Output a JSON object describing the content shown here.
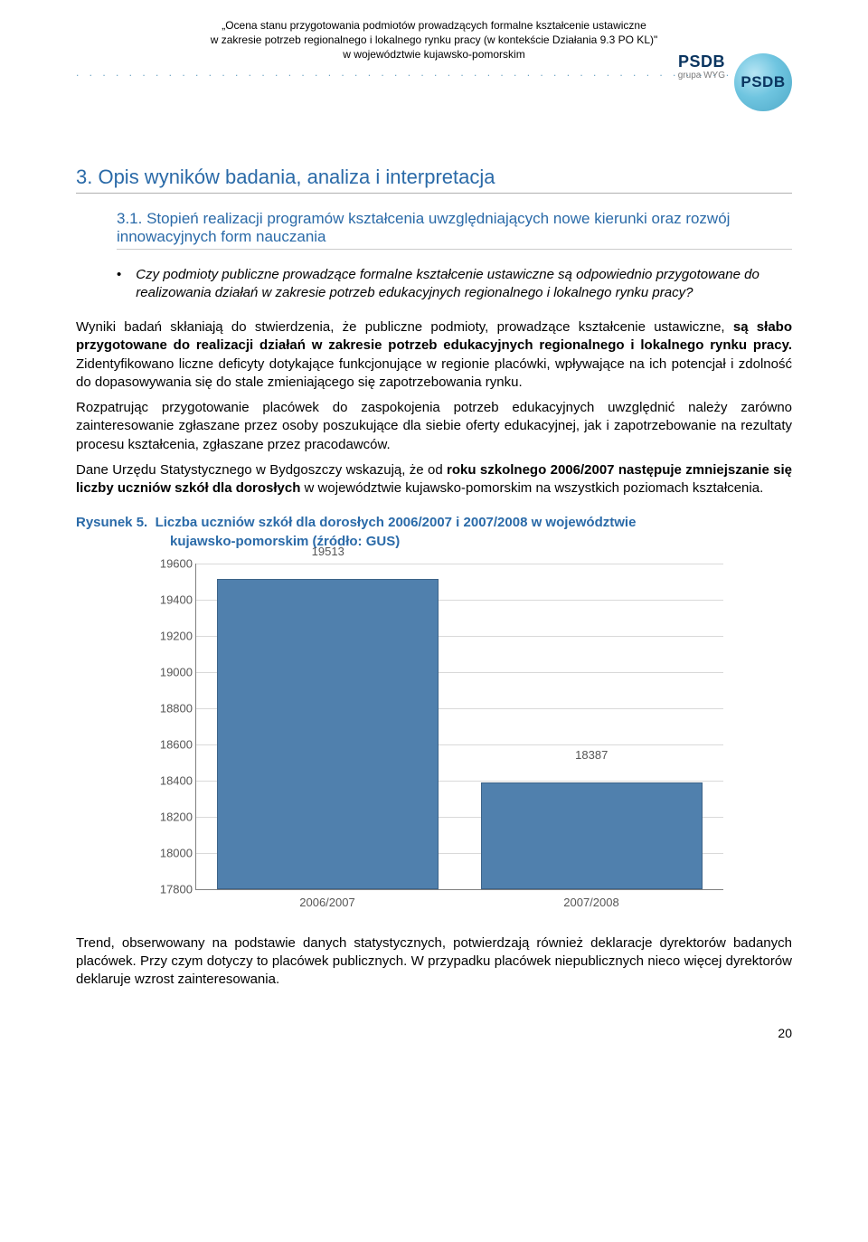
{
  "header": {
    "line1": "„Ocena stanu przygotowania podmiotów prowadzących formalne kształcenie ustawiczne",
    "line2": "w zakresie potrzeb regionalnego i lokalnego rynku pracy (w kontekście Działania 9.3 PO KL)\"",
    "line3": "w województwie kujawsko-pomorskim"
  },
  "logo": {
    "main": "PSDB",
    "sub": "grupa WYG",
    "circle": "PSDB"
  },
  "section": {
    "title": "3. Opis wyników badania, analiza i interpretacja",
    "subtitle": "3.1.  Stopień realizacji programów kształcenia uwzględniających nowe kierunki oraz rozwój innowacyjnych form nauczania"
  },
  "bullet": "Czy podmioty publiczne prowadzące formalne kształcenie ustawiczne są odpowiednio przygotowane do realizowania działań w zakresie potrzeb edukacyjnych regionalnego i lokalnego rynku pracy?",
  "para1_pre": "Wyniki badań skłaniają do stwierdzenia, że publiczne podmioty, prowadzące kształcenie ustawiczne, ",
  "para1_bold": "są słabo przygotowane do realizacji działań w zakresie potrzeb edukacyjnych regionalnego i lokalnego rynku pracy.",
  "para1_post": " Zidentyfikowano liczne deficyty dotykające funkcjonujące w regionie placówki, wpływające na ich potencjał i zdolność do dopasowywania się do stale zmieniającego się zapotrzebowania rynku.",
  "para2": "Rozpatrując przygotowanie placówek do zaspokojenia potrzeb edukacyjnych uwzględnić należy zarówno zainteresowanie zgłaszane przez osoby poszukujące dla siebie oferty edukacyjnej, jak i zapotrzebowanie na rezultaty procesu kształcenia, zgłaszane przez pracodawców.",
  "para3_pre": "Dane Urzędu Statystycznego w Bydgoszczy wskazują, że od ",
  "para3_bold": "roku szkolnego 2006/2007 następuje zmniejszanie się liczby uczniów szkół dla dorosłych",
  "para3_post": " w województwie kujawsko-pomorskim na wszystkich poziomach kształcenia.",
  "figure": {
    "label_prefix": "Rysunek 5.",
    "label_title": "Liczba uczniów szkół dla dorosłych 2006/2007 i 2007/2008 w województwie",
    "label_title2": "kujawsko-pomorskim (źródło: GUS)"
  },
  "chart": {
    "type": "bar",
    "categories": [
      "2006/2007",
      "2007/2008"
    ],
    "values": [
      19513,
      18387
    ],
    "bar_color": "#5080ad",
    "bar_border": "#3d6388",
    "background": "#ffffff",
    "grid_color": "#d9d9d9",
    "axis_color": "#808080",
    "y_min": 17800,
    "y_max": 19600,
    "y_step": 200,
    "label_fontsize": 13,
    "label_color": "#555555",
    "bar_width_pct": 42
  },
  "footer_para": "Trend, obserwowany na podstawie danych statystycznych, potwierdzają również deklaracje dyrektorów badanych placówek. Przy czym dotyczy to placówek publicznych. W przypadku placówek niepublicznych nieco więcej dyrektorów deklaruje wzrost zainteresowania.",
  "page_number": "20"
}
